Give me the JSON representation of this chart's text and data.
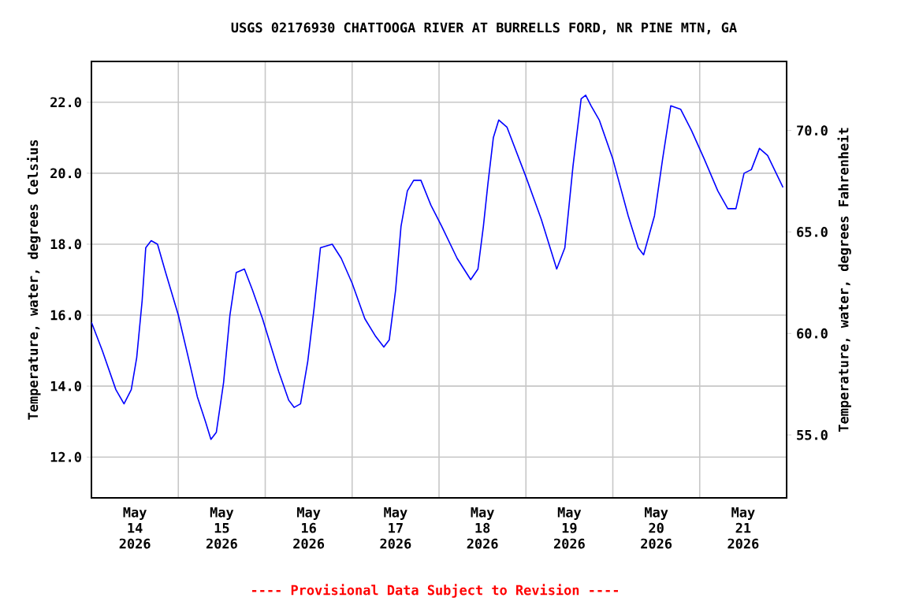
{
  "chart_data": {
    "type": "line",
    "title": "USGS 02176930 CHATTOOGA RIVER AT BURRELLS FORD, NR PINE MTN, GA",
    "ylabel": "Temperature, water, degrees Celsius",
    "y2label": "Temperature, water, degrees Fahrenheit",
    "annotations": [
      "---- Provisional Data Subject to Revision ----"
    ],
    "xlim": [
      "2026-05-14T00:00",
      "2026-05-22T00:00"
    ],
    "xticks": [
      {
        "value": "2026-05-14T12:00",
        "label": "May 14 2026"
      },
      {
        "value": "2026-05-15T12:00",
        "label": "May 15 2026"
      },
      {
        "value": "2026-05-16T12:00",
        "label": "May 16 2026"
      },
      {
        "value": "2026-05-17T12:00",
        "label": "May 17 2026"
      },
      {
        "value": "2026-05-18T12:00",
        "label": "May 18 2026"
      },
      {
        "value": "2026-05-19T12:00",
        "label": "May 19 2026"
      },
      {
        "value": "2026-05-20T12:00",
        "label": "May 20 2026"
      },
      {
        "value": "2026-05-21T12:00",
        "label": "May 21 2026"
      },
      {
        "value": "2026-05-15T00:00",
        "label": null
      },
      {
        "value": "2026-05-16T00:00",
        "label": null
      },
      {
        "value": "2026-05-17T00:00",
        "label": null
      },
      {
        "value": "2026-05-18T00:00",
        "label": null
      },
      {
        "value": "2026-05-19T00:00",
        "label": null
      },
      {
        "value": "2026-05-20T00:00",
        "label": null
      },
      {
        "value": "2026-05-21T00:00",
        "label": null
      }
    ],
    "ylim": [
      10.85,
      23.15
    ],
    "yticks": [
      {
        "value": 12,
        "label": "12.0"
      },
      {
        "value": 14,
        "label": "14.0"
      },
      {
        "value": 16,
        "label": "16.0"
      },
      {
        "value": 18,
        "label": "18.0"
      },
      {
        "value": 20,
        "label": "20.0"
      },
      {
        "value": 22,
        "label": "22.0"
      }
    ],
    "y2lim": [
      51.9,
      73.4
    ],
    "y2ticks": [
      {
        "value": 55,
        "label": "55.0"
      },
      {
        "value": 60,
        "label": "60.0"
      },
      {
        "value": 65,
        "label": "65.0"
      },
      {
        "value": 70,
        "label": "70.0"
      }
    ],
    "grid": true,
    "series": [
      {
        "color": "#0000ff",
        "x": [
          "2026-05-14T00:00",
          "2026-05-14T03:00",
          "2026-05-14T06:45",
          "2026-05-14T09:00",
          "2026-05-14T11:00",
          "2026-05-14T12:30",
          "2026-05-14T14:00",
          "2026-05-14T15:00",
          "2026-05-14T16:30",
          "2026-05-14T18:15",
          "2026-05-14T20:30",
          "2026-05-15T00:00",
          "2026-05-15T03:00",
          "2026-05-15T05:15",
          "2026-05-15T07:30",
          "2026-05-15T09:00",
          "2026-05-15T10:30",
          "2026-05-15T12:30",
          "2026-05-15T14:15",
          "2026-05-15T16:00",
          "2026-05-15T18:15",
          "2026-05-15T20:30",
          "2026-05-15T23:15",
          "2026-05-16T03:45",
          "2026-05-16T06:30",
          "2026-05-16T08:00",
          "2026-05-16T09:45",
          "2026-05-16T11:45",
          "2026-05-16T13:30",
          "2026-05-16T15:15",
          "2026-05-16T18:30",
          "2026-05-16T21:00",
          "2026-05-17T00:00",
          "2026-05-17T03:30",
          "2026-05-17T06:30",
          "2026-05-17T08:45",
          "2026-05-17T10:15",
          "2026-05-17T12:00",
          "2026-05-17T13:30",
          "2026-05-17T15:15",
          "2026-05-17T17:00",
          "2026-05-17T19:00",
          "2026-05-17T21:45",
          "2026-05-18T00:45",
          "2026-05-18T05:00",
          "2026-05-18T08:45",
          "2026-05-18T10:45",
          "2026-05-18T12:15",
          "2026-05-18T13:30",
          "2026-05-18T15:00",
          "2026-05-18T16:30",
          "2026-05-18T18:45",
          "2026-05-19T00:00",
          "2026-05-19T04:15",
          "2026-05-19T08:30",
          "2026-05-19T10:45",
          "2026-05-19T13:00",
          "2026-05-19T15:15",
          "2026-05-19T16:30",
          "2026-05-19T18:00",
          "2026-05-19T20:15",
          "2026-05-20T00:00",
          "2026-05-20T04:15",
          "2026-05-20T07:00",
          "2026-05-20T08:30",
          "2026-05-20T11:30",
          "2026-05-20T13:45",
          "2026-05-20T16:00",
          "2026-05-20T18:45",
          "2026-05-20T21:45",
          "2026-05-21T01:15",
          "2026-05-21T05:00",
          "2026-05-21T07:45",
          "2026-05-21T10:00",
          "2026-05-21T12:15",
          "2026-05-21T14:15",
          "2026-05-21T16:30",
          "2026-05-21T18:45",
          "2026-05-21T23:00"
        ],
        "values": [
          15.8,
          15.0,
          13.9,
          13.5,
          13.9,
          14.8,
          16.4,
          17.9,
          18.1,
          18.0,
          17.2,
          16.0,
          14.7,
          13.7,
          13.0,
          12.5,
          12.7,
          14.1,
          16.0,
          17.2,
          17.3,
          16.7,
          15.9,
          14.4,
          13.6,
          13.4,
          13.5,
          14.7,
          16.2,
          17.9,
          18.0,
          17.6,
          16.9,
          15.9,
          15.4,
          15.1,
          15.3,
          16.7,
          18.5,
          19.5,
          19.8,
          19.8,
          19.1,
          18.5,
          17.6,
          17.0,
          17.3,
          18.5,
          19.7,
          21.0,
          21.5,
          21.3,
          19.9,
          18.7,
          17.3,
          17.9,
          20.2,
          22.1,
          22.2,
          21.9,
          21.5,
          20.4,
          18.8,
          17.9,
          17.7,
          18.8,
          20.4,
          21.9,
          21.8,
          21.2,
          20.4,
          19.5,
          19.0,
          19.0,
          20.0,
          20.1,
          20.7,
          20.5,
          19.6
        ]
      }
    ]
  }
}
